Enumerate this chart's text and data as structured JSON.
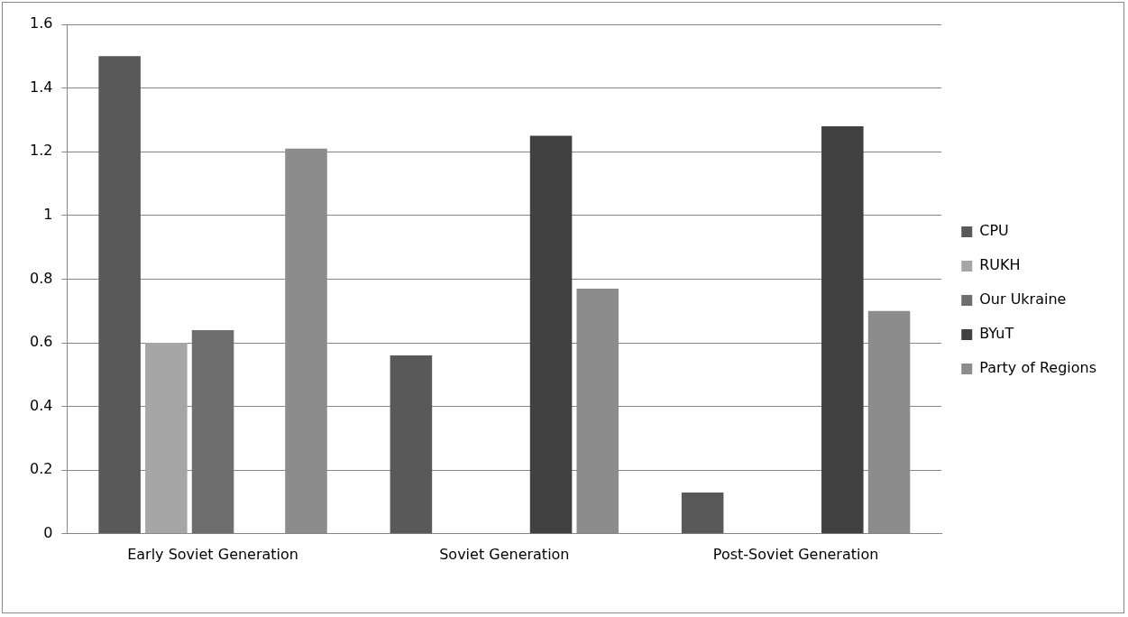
{
  "chart_data": {
    "type": "bar",
    "categories": [
      "Early Soviet Generation",
      "Soviet Generation",
      "Post-Soviet Generation"
    ],
    "series": [
      {
        "name": "CPU",
        "color": "#595959",
        "values": [
          1.5,
          0.56,
          0.13
        ]
      },
      {
        "name": "RUKH",
        "color": "#a6a6a6",
        "values": [
          0.6,
          0,
          0
        ]
      },
      {
        "name": "Our Ukraine",
        "color": "#6e6e6e",
        "values": [
          0.64,
          0,
          0
        ]
      },
      {
        "name": "BYuT",
        "color": "#404040",
        "values": [
          0,
          1.25,
          1.28
        ]
      },
      {
        "name": "Party of Regions",
        "color": "#8c8c8c",
        "values": [
          1.21,
          0.77,
          0.7
        ]
      }
    ],
    "ylim": [
      0,
      1.6
    ],
    "yticks": [
      0,
      0.2,
      0.4,
      0.6,
      0.8,
      1,
      1.2,
      1.4,
      1.6
    ],
    "grid": "y",
    "legend": "right"
  }
}
